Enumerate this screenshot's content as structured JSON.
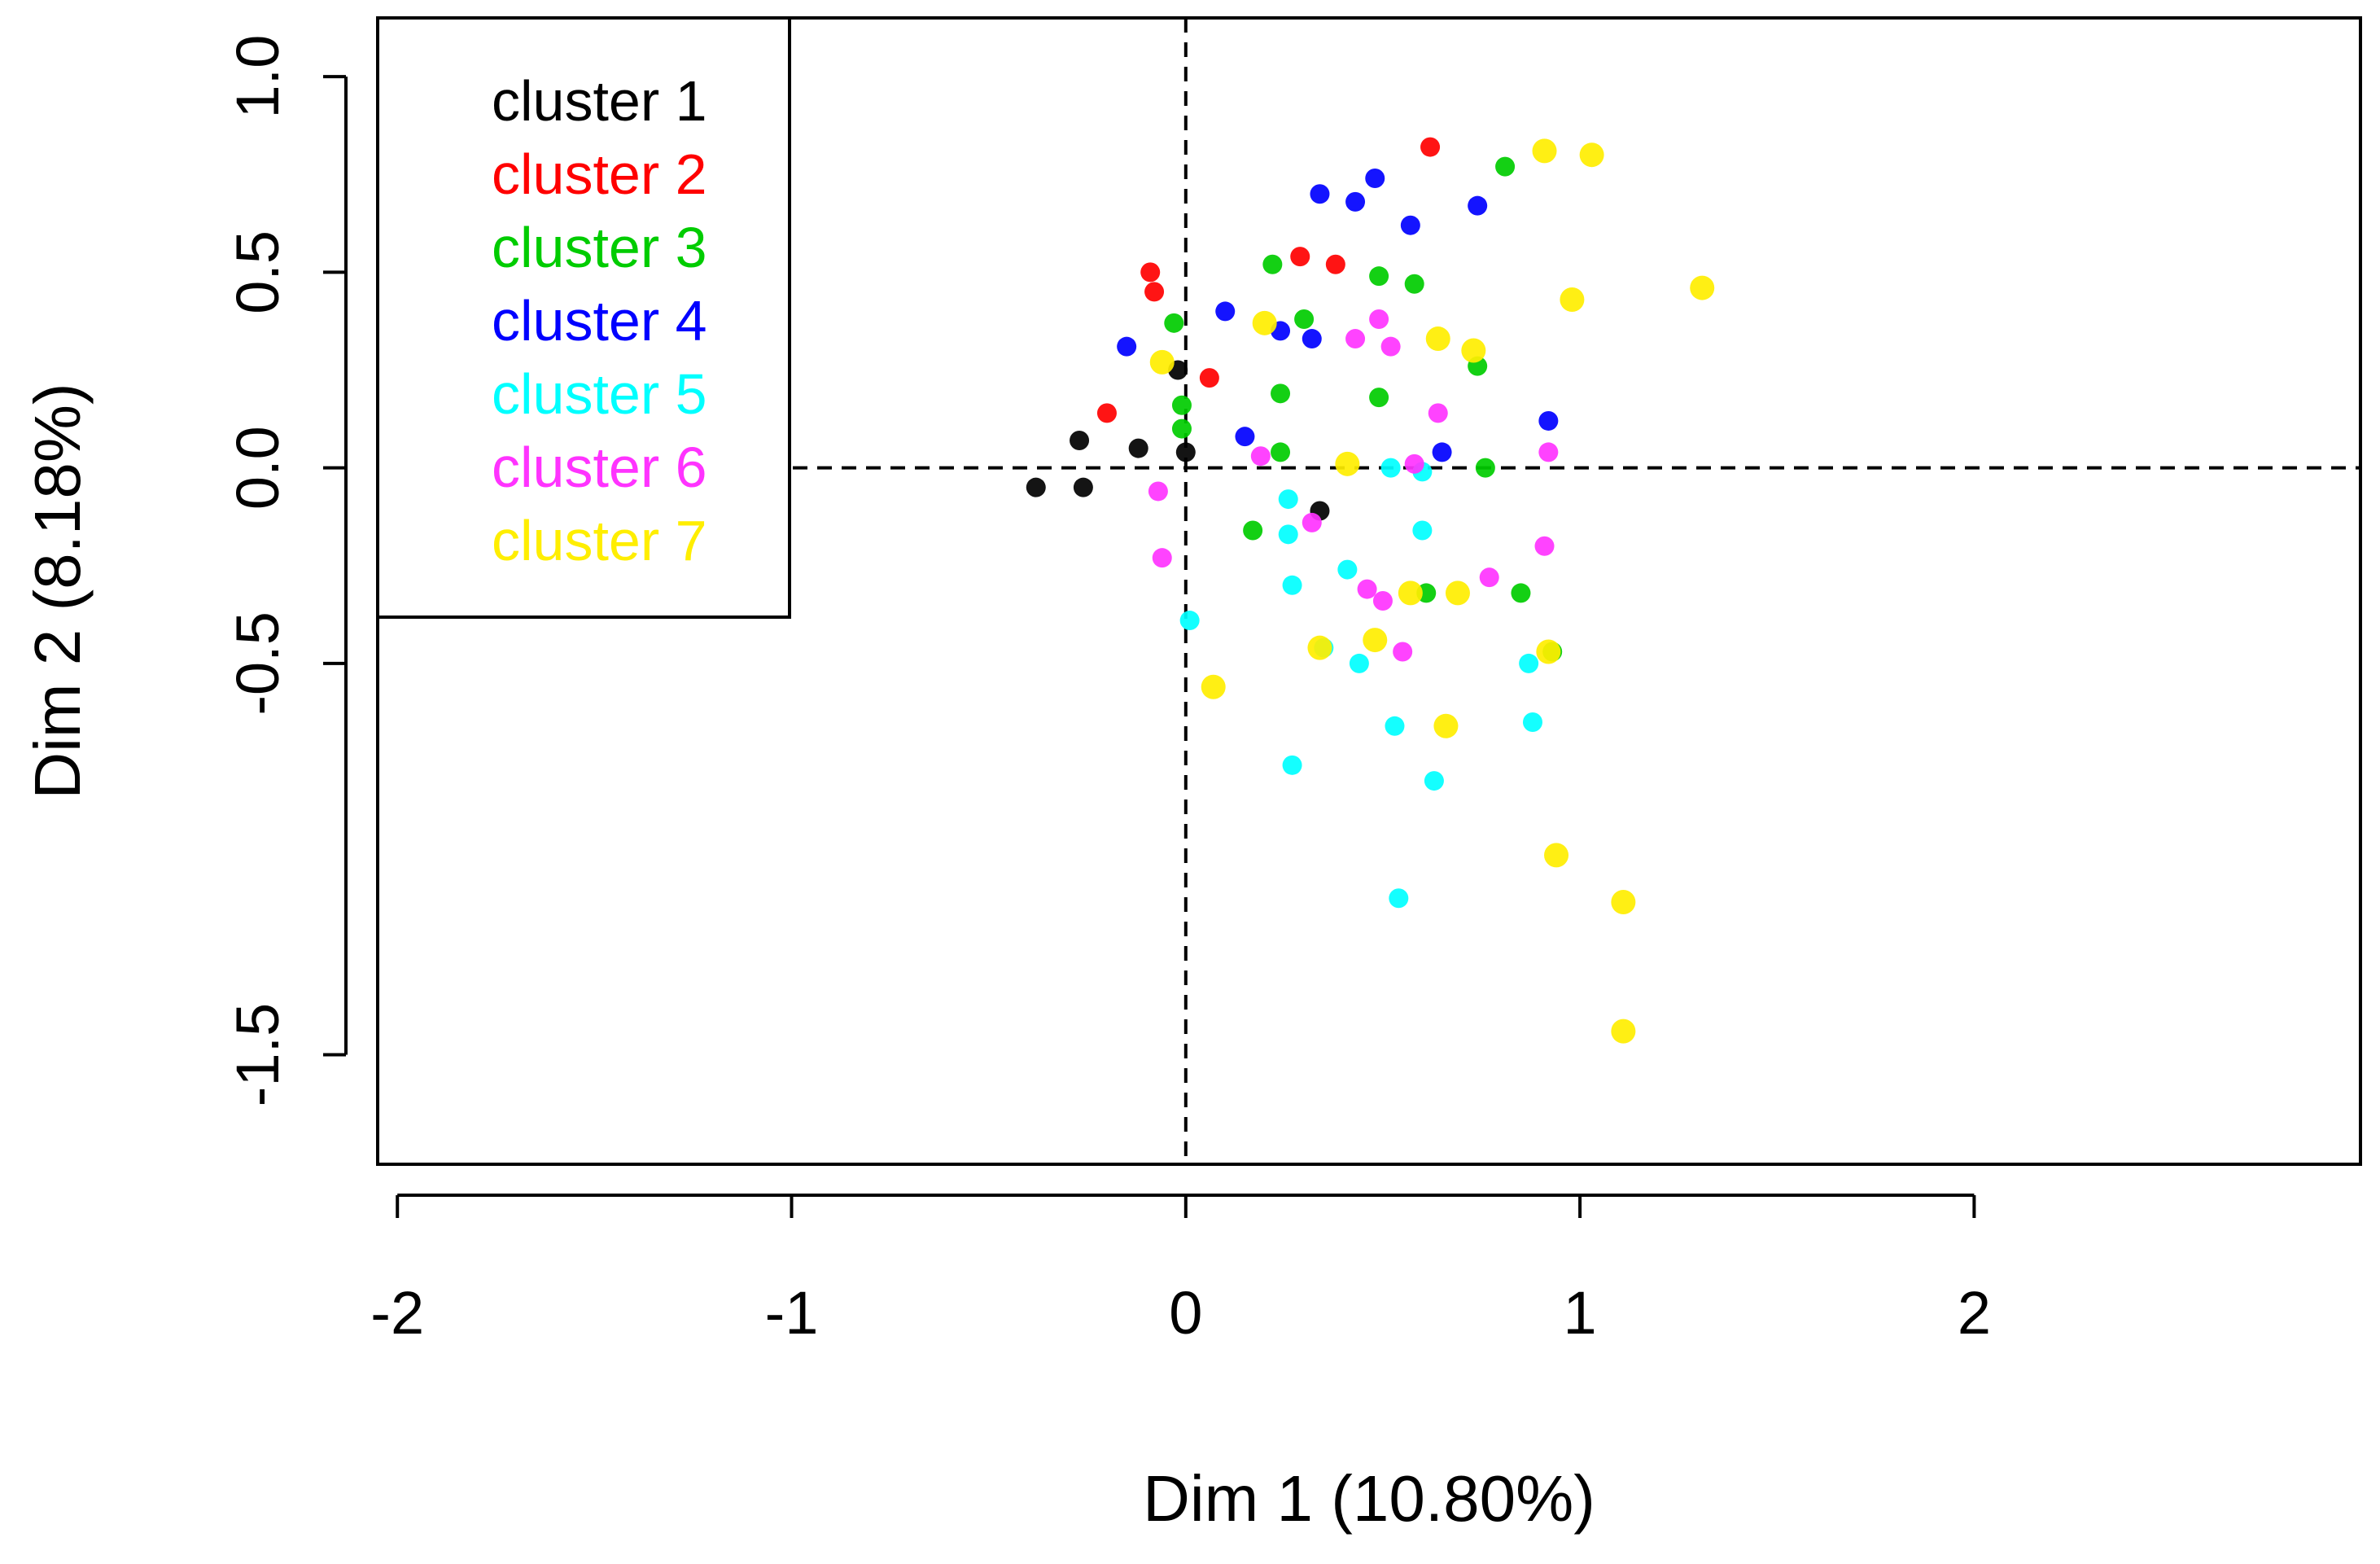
{
  "chart_data": {
    "type": "scatter",
    "title": "",
    "xlabel": "Dim 1 (10.80%)",
    "ylabel": "Dim 2 (8.18%)",
    "xlim": [
      -2.05,
      2.98
    ],
    "ylim": [
      -1.78,
      1.15
    ],
    "xticks": [
      -2,
      -1,
      0,
      1,
      2
    ],
    "xtick_labels": [
      "-2",
      "-1",
      "0",
      "1",
      "2"
    ],
    "yticks": [
      1.0,
      0.5,
      0.0,
      -0.5,
      -1.5
    ],
    "ytick_labels": [
      "1.0",
      "0.5",
      "0.0",
      "-0.5",
      "-1.5"
    ],
    "reference_lines": {
      "x": 0,
      "y": 0,
      "style": "dashed"
    },
    "grid": false,
    "legend_position": "top-left",
    "series": [
      {
        "name": "cluster 1",
        "color": "#000000",
        "x": [
          -0.38,
          -0.26,
          -0.27,
          -0.12,
          0.0,
          -0.02,
          0.34
        ],
        "y": [
          -0.05,
          -0.05,
          0.07,
          0.05,
          0.04,
          0.25,
          -0.11
        ]
      },
      {
        "name": "cluster 2",
        "color": "#ff0000",
        "x": [
          -0.09,
          -0.08,
          -0.2,
          0.06,
          0.29,
          0.38,
          0.62
        ],
        "y": [
          0.5,
          0.45,
          0.14,
          0.23,
          0.54,
          0.52,
          0.82
        ]
      },
      {
        "name": "cluster 3",
        "color": "#00cc00",
        "x": [
          -0.03,
          -0.01,
          -0.01,
          0.22,
          0.24,
          0.24,
          0.3,
          0.49,
          0.49,
          0.58,
          0.74,
          0.81,
          0.76,
          0.61,
          0.85,
          0.93,
          0.17
        ],
        "y": [
          0.37,
          0.16,
          0.1,
          0.52,
          0.19,
          0.04,
          0.38,
          0.49,
          0.18,
          0.47,
          0.26,
          0.77,
          0.0,
          -0.32,
          -0.32,
          -0.47,
          -0.16
        ]
      },
      {
        "name": "cluster 4",
        "color": "#0000ff",
        "x": [
          -0.15,
          0.1,
          0.15,
          0.24,
          0.32,
          0.34,
          0.43,
          0.48,
          0.57,
          0.74,
          0.65,
          0.92
        ],
        "y": [
          0.31,
          0.4,
          0.08,
          0.35,
          0.33,
          0.7,
          0.68,
          0.74,
          0.62,
          0.67,
          0.04,
          0.12
        ]
      },
      {
        "name": "cluster 5",
        "color": "#00ffff",
        "x": [
          0.01,
          0.26,
          0.26,
          0.27,
          0.35,
          0.41,
          0.44,
          0.52,
          0.53,
          0.6,
          0.6,
          0.63,
          0.87,
          0.88,
          0.54,
          0.27
        ],
        "y": [
          -0.39,
          -0.08,
          -0.17,
          -0.3,
          -0.46,
          -0.26,
          -0.5,
          0.0,
          -0.66,
          -0.01,
          -0.16,
          -0.8,
          -0.5,
          -0.65,
          -1.1,
          -0.76
        ]
      },
      {
        "name": "cluster 6",
        "color": "#ff33ff",
        "x": [
          -0.07,
          -0.06,
          0.19,
          0.32,
          0.43,
          0.46,
          0.49,
          0.5,
          0.52,
          0.55,
          0.58,
          0.64,
          0.77,
          0.91,
          0.92
        ],
        "y": [
          -0.06,
          -0.23,
          0.03,
          -0.14,
          0.33,
          -0.31,
          0.38,
          -0.34,
          0.31,
          -0.47,
          0.01,
          0.14,
          -0.28,
          -0.2,
          0.04
        ]
      },
      {
        "name": "cluster 7",
        "color": "#ffee00",
        "x": [
          -0.06,
          0.2,
          0.41,
          0.64,
          0.73,
          0.07,
          0.34,
          0.48,
          0.57,
          0.69,
          0.66,
          0.92,
          0.91,
          1.03,
          0.98,
          1.31,
          0.94,
          1.11,
          1.11
        ],
        "y": [
          0.27,
          0.37,
          0.01,
          0.33,
          0.3,
          -0.56,
          -0.46,
          -0.44,
          -0.32,
          -0.32,
          -0.66,
          -0.47,
          0.81,
          0.8,
          0.43,
          0.46,
          -0.99,
          -1.11,
          -1.44
        ]
      }
    ]
  }
}
